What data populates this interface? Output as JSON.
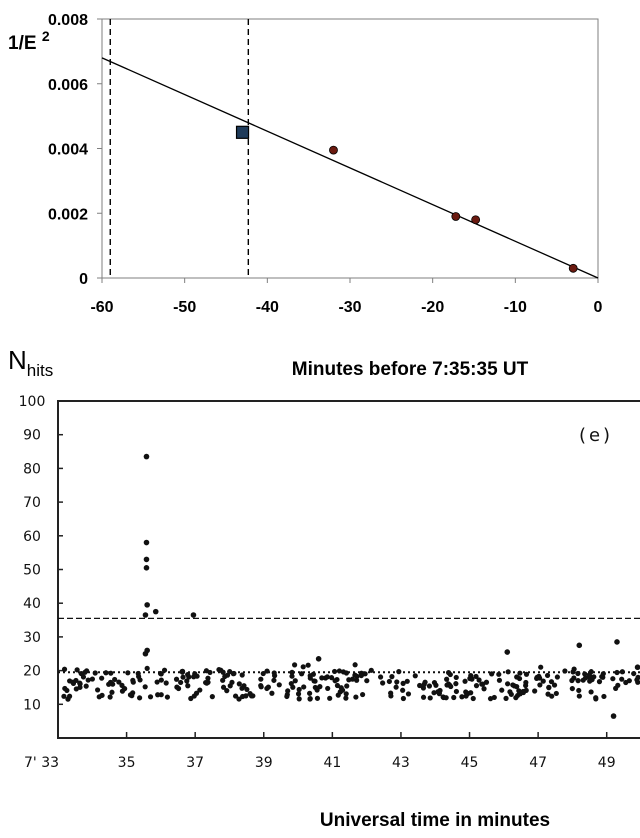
{
  "chart_data": [
    {
      "type": "scatter",
      "ylabel": "1/E ",
      "ylabel_sup": "2",
      "xlabel": "Minutes before 7:35:35 UT",
      "xlim": [
        -60,
        0
      ],
      "ylim": [
        0,
        0.008
      ],
      "x_ticks": [
        "-60",
        "-50",
        "-40",
        "-30",
        "-20",
        "-10",
        "0"
      ],
      "y_ticks": [
        "0",
        "0.002",
        "0.004",
        "0.006",
        "0.008"
      ],
      "vertical_dashed_lines": [
        -59,
        -42.3
      ],
      "fit_line": {
        "x": [
          -60,
          0
        ],
        "y": [
          0.0068,
          0.0
        ]
      },
      "square_point": {
        "x": -43,
        "y": 0.0045,
        "color": "#1f3b5a"
      },
      "points": [
        {
          "x": -32,
          "y": 0.00395
        },
        {
          "x": -17.2,
          "y": 0.0019
        },
        {
          "x": -14.8,
          "y": 0.0018
        },
        {
          "x": -3,
          "y": 0.0003
        }
      ],
      "point_color": "#6b1a10"
    },
    {
      "type": "scatter",
      "ylabel": "N",
      "ylabel_sub": "hits",
      "xlabel": "Universal time in minutes",
      "annotation": "(e)",
      "xlim": [
        33,
        50
      ],
      "ylim": [
        0,
        100
      ],
      "x_ticks": [
        "7' 33",
        "35",
        "37",
        "39",
        "41",
        "43",
        "45",
        "47",
        "49"
      ],
      "x_tick_values": [
        33,
        35,
        37,
        39,
        41,
        43,
        45,
        47,
        49
      ],
      "y_ticks": [
        "100",
        "90",
        "80",
        "70",
        "60",
        "50",
        "40",
        "30",
        "20",
        "10"
      ],
      "y_tick_values": [
        100,
        90,
        80,
        70,
        60,
        50,
        40,
        30,
        20,
        10
      ],
      "dashed_threshold": 35.5,
      "dotted_baseline": 19.5,
      "outliers": [
        {
          "x": 35.58,
          "y": 83.5
        },
        {
          "x": 35.58,
          "y": 58
        },
        {
          "x": 35.58,
          "y": 53
        },
        {
          "x": 35.58,
          "y": 50.5
        },
        {
          "x": 35.6,
          "y": 39.5
        },
        {
          "x": 35.55,
          "y": 36.5
        },
        {
          "x": 35.85,
          "y": 37.5
        },
        {
          "x": 36.95,
          "y": 36.5
        },
        {
          "x": 35.6,
          "y": 26
        },
        {
          "x": 35.55,
          "y": 25
        },
        {
          "x": 48.2,
          "y": 27.5
        },
        {
          "x": 49.3,
          "y": 28.5
        },
        {
          "x": 46.1,
          "y": 25.5
        },
        {
          "x": 49.2,
          "y": 6.5
        },
        {
          "x": 40.6,
          "y": 23.5
        },
        {
          "x": 49.9,
          "y": 21
        }
      ]
    }
  ]
}
